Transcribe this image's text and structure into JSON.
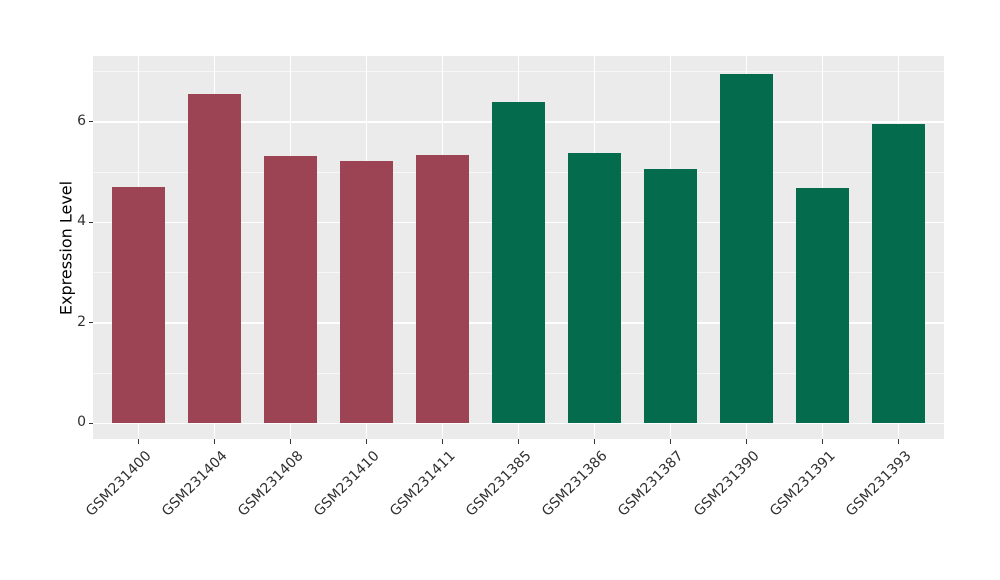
{
  "chart_data": {
    "type": "bar",
    "title": "",
    "xlabel": "",
    "ylabel": "Expression Level",
    "categories": [
      "GSM231400",
      "GSM231404",
      "GSM231408",
      "GSM231410",
      "GSM231411",
      "GSM231385",
      "GSM231386",
      "GSM231387",
      "GSM231390",
      "GSM231391",
      "GSM231393"
    ],
    "values": [
      4.7,
      6.55,
      5.32,
      5.22,
      5.34,
      6.39,
      5.38,
      5.06,
      6.95,
      4.68,
      5.95
    ],
    "bar_colors": [
      "#9C4454",
      "#9C4454",
      "#9C4454",
      "#9C4454",
      "#9C4454",
      "#046B4C",
      "#046B4C",
      "#046B4C",
      "#046B4C",
      "#046B4C",
      "#046B4C"
    ],
    "group_colors": {
      "maroon_group": "#9C4454",
      "green_group": "#046B4C"
    },
    "ylim": [
      -0.31,
      7.31
    ],
    "yticks": [
      0,
      2,
      4,
      6
    ],
    "yticks_minor": [
      1,
      3,
      5,
      7
    ],
    "x_label_angle": 45,
    "bar_width_fraction": 0.7,
    "grid": true,
    "legend": "none",
    "panel_bg": "#EBEBEB",
    "grid_major_color": "#FFFFFF",
    "grid_minor_color": "rgba(255,255,255,0.6)",
    "tick_mark_color": "#333333",
    "tick_label_color": "#303030"
  }
}
